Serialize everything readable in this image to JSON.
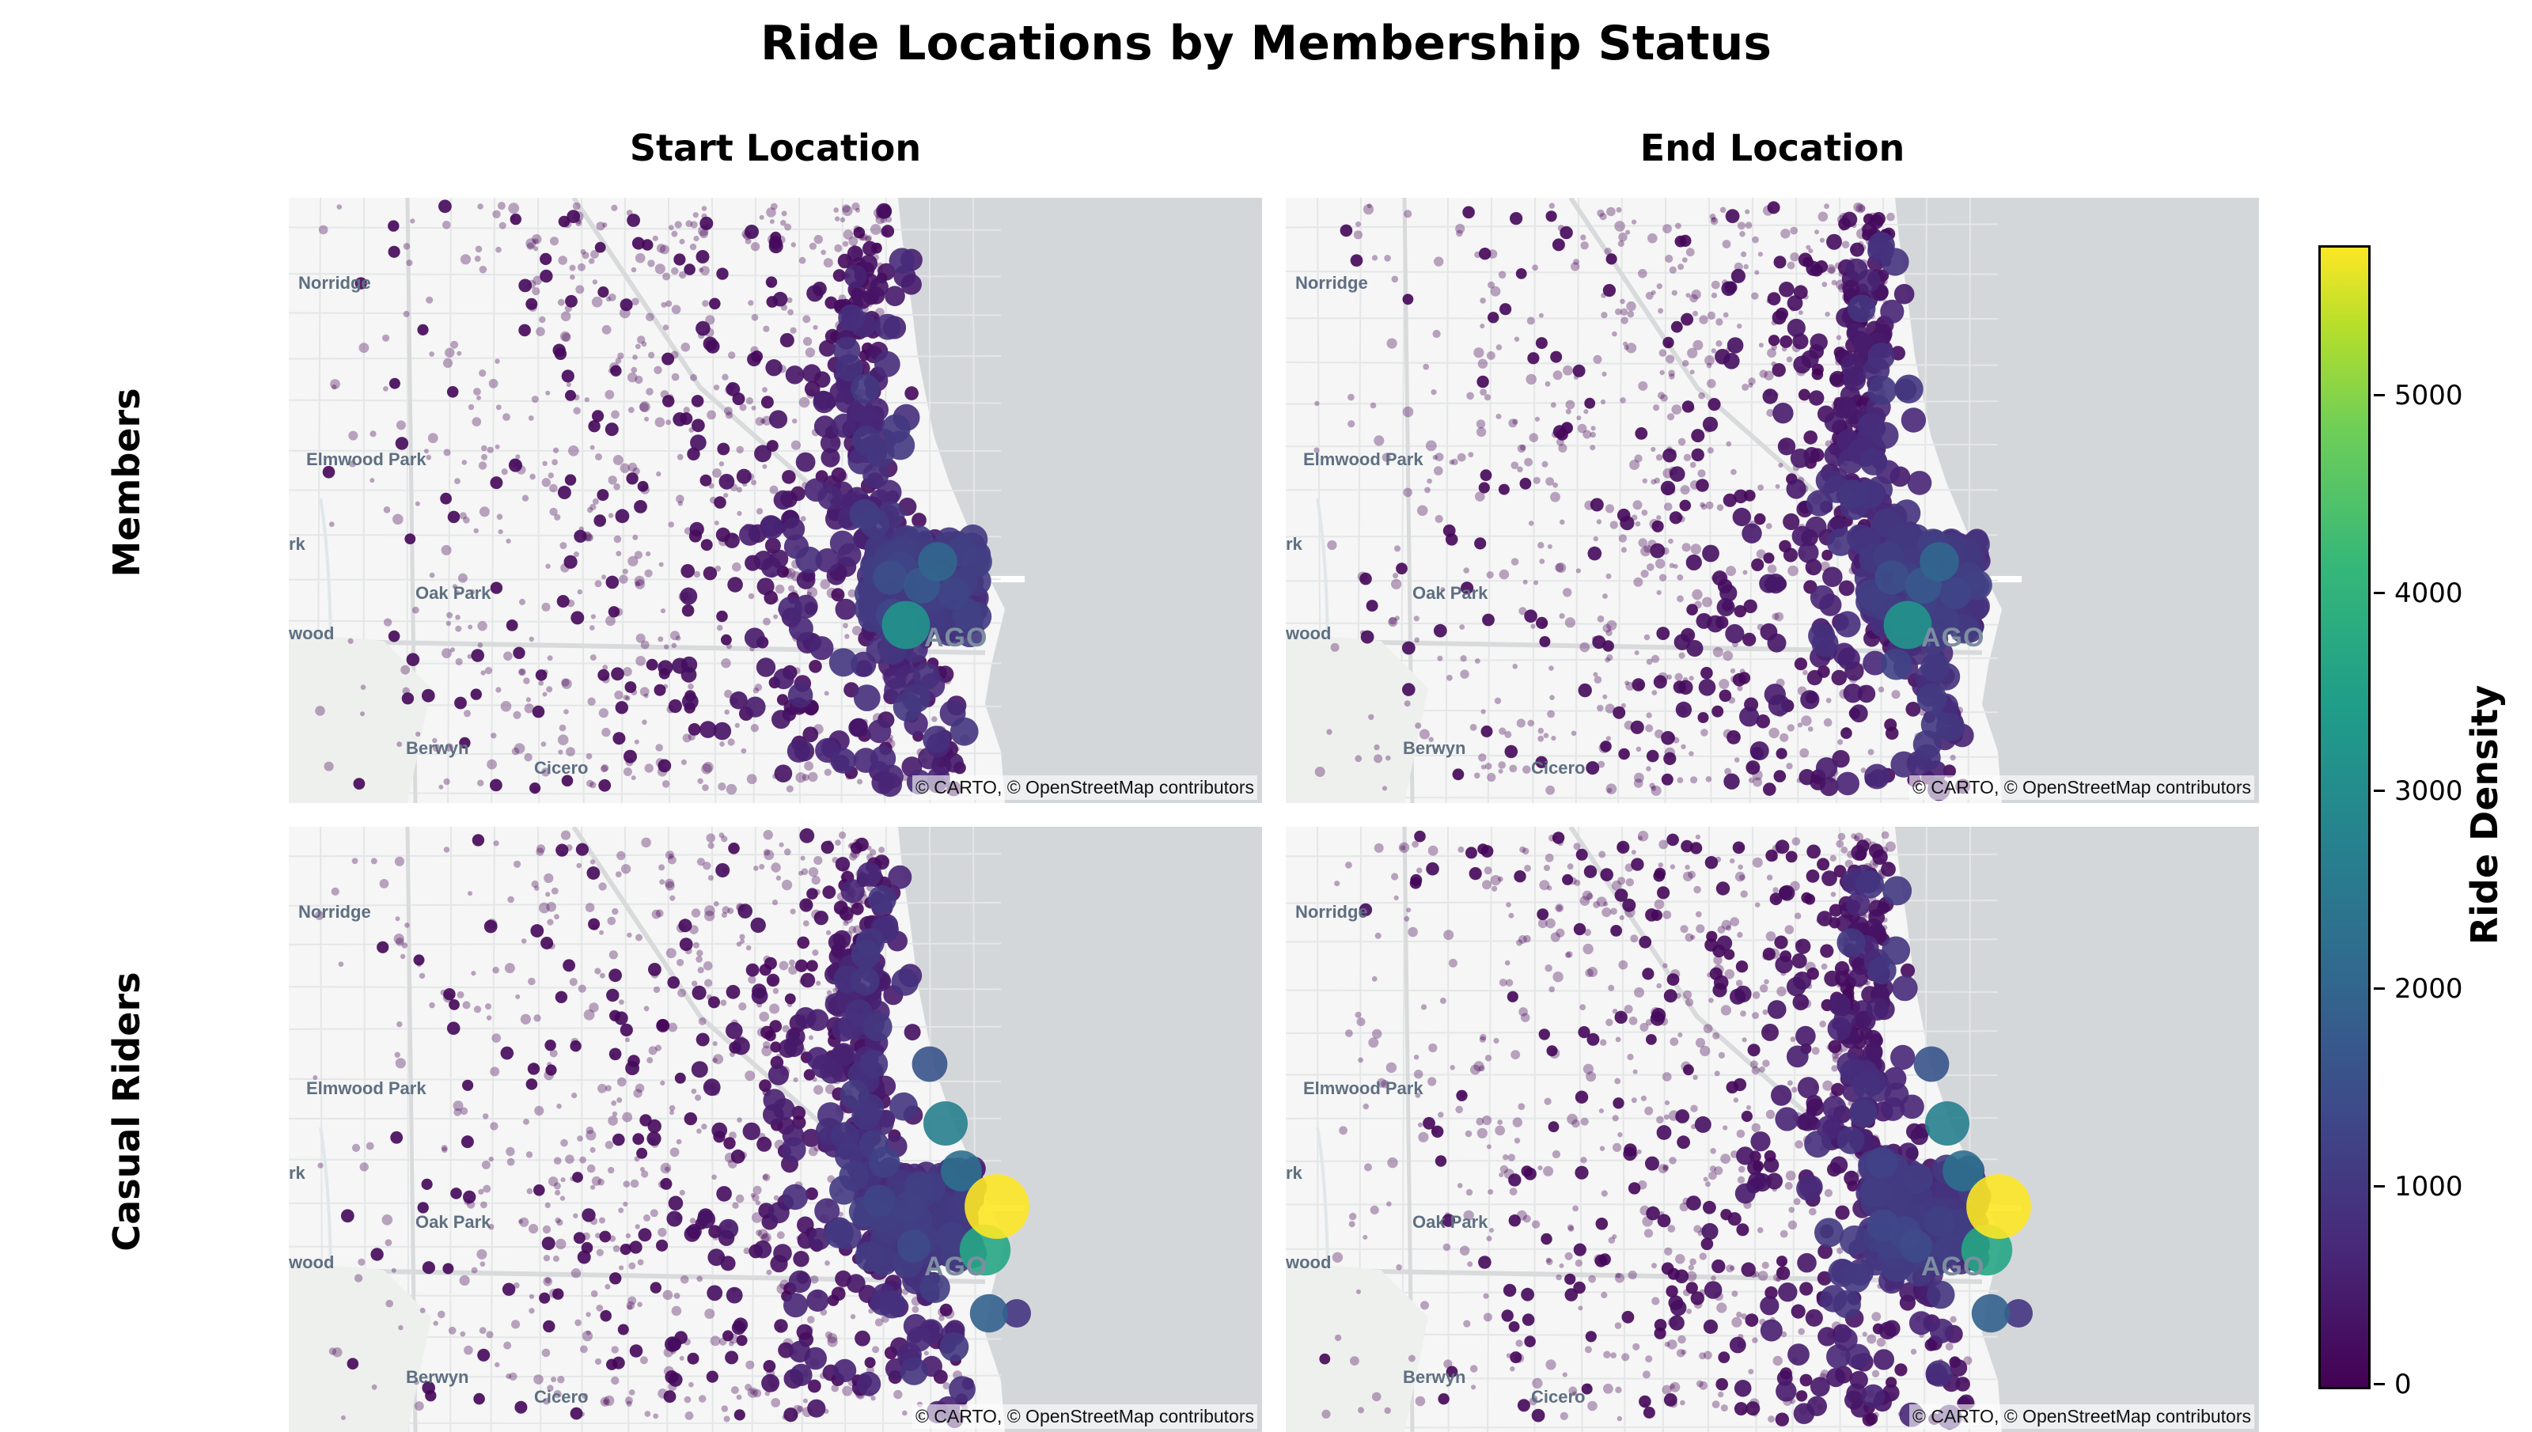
{
  "title": "Ride Locations by Membership Status",
  "columns": [
    "Start Location",
    "End Location"
  ],
  "rows": [
    "Members",
    "Casual Riders"
  ],
  "attribution": "© CARTO, © OpenStreetMap contributors",
  "place_labels": [
    "Norridge",
    "Elmwood Park",
    "rk",
    "Oak Park",
    "wood",
    "Berwyn",
    "Cicero",
    "AGO"
  ],
  "colorbar": {
    "title": "Ride Density",
    "ticks": [
      "0",
      "1000",
      "2000",
      "3000",
      "4000",
      "5000"
    ],
    "colors": [
      "#440154",
      "#482878",
      "#3e4989",
      "#31688e",
      "#26828e",
      "#1f9e89",
      "#35b779",
      "#6ece58",
      "#b5de2b",
      "#fde725"
    ],
    "range": [
      0,
      5750
    ]
  }
}
